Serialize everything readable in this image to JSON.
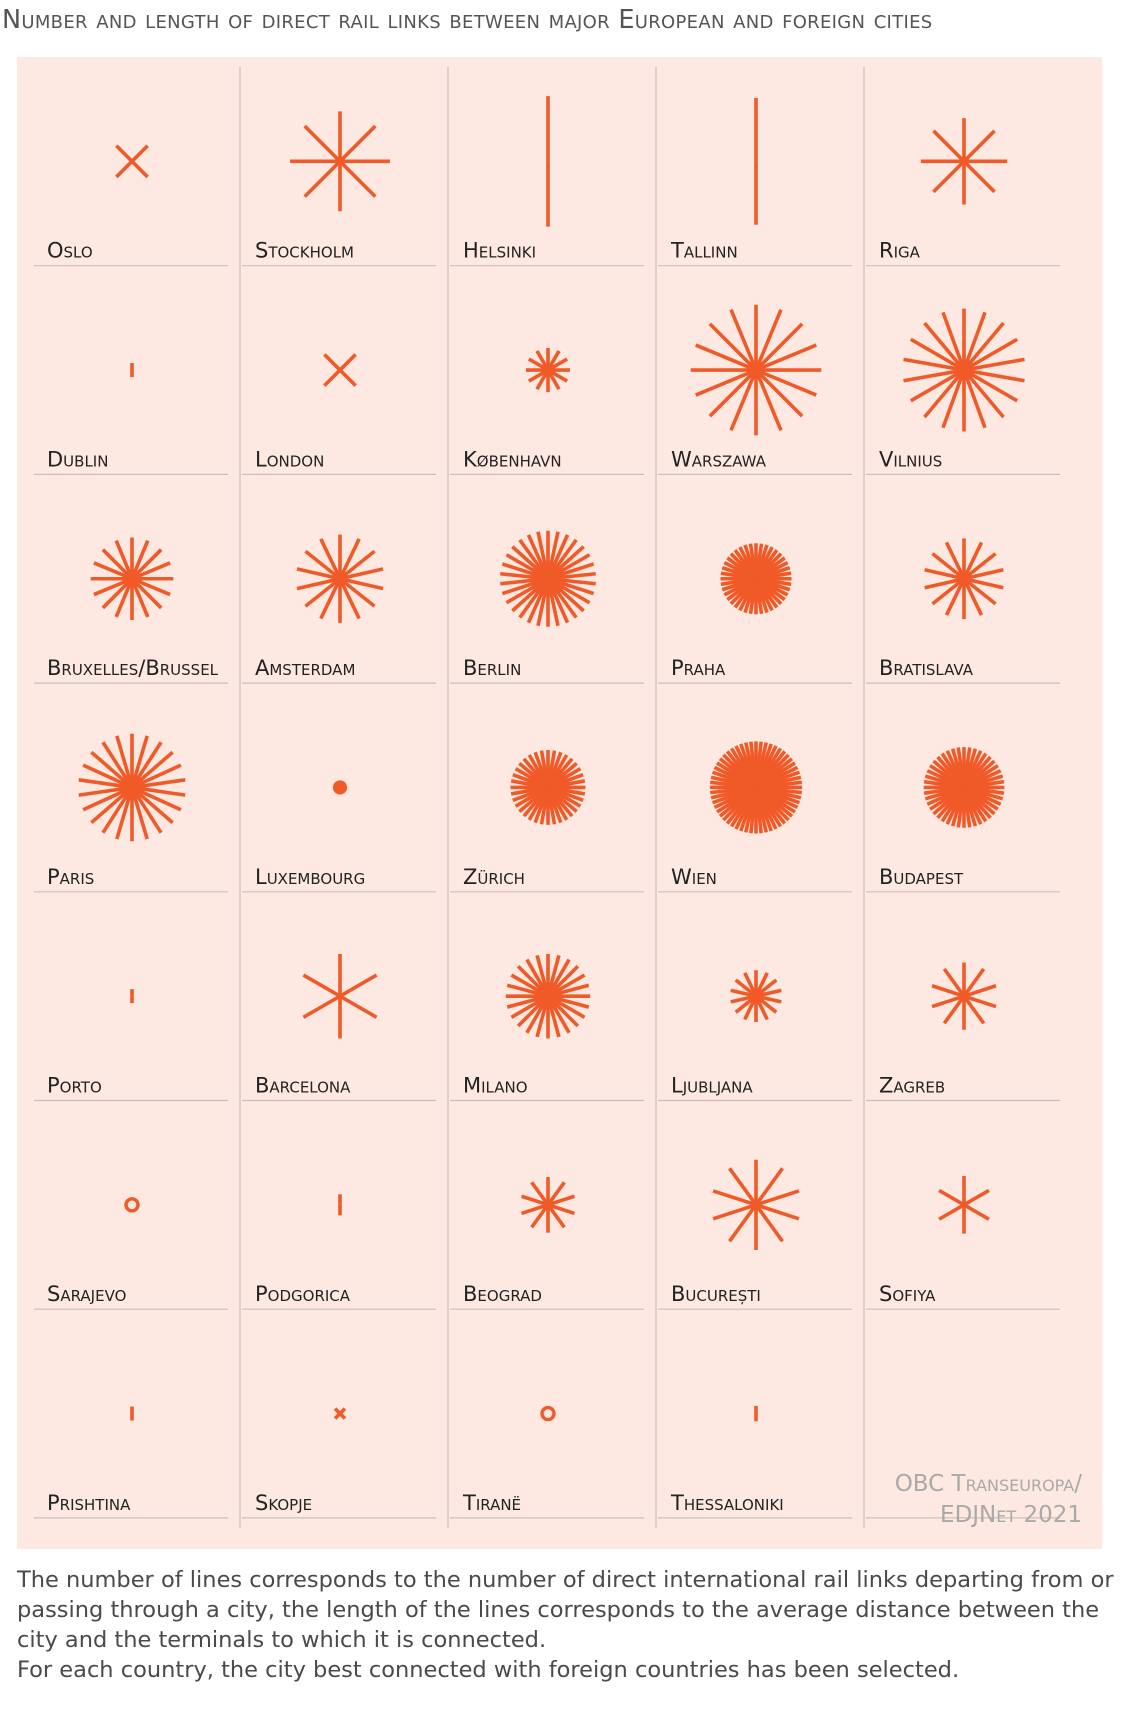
{
  "title": "Number and length of direct rail links between major European and foreign cities",
  "credit": {
    "line1": "OBC Transeuropa/",
    "line2": "EDJNet 2021"
  },
  "caption": {
    "line1": "The number of lines corresponds to the number of direct international rail links departing from or passing through a city, the length of the lines corresponds to the average distance between the city and the terminals to which it is connected.",
    "line2": "For each country, the city best connected with foreign countries has been selected."
  },
  "colors": {
    "star": "#f05a28",
    "panel": "#fde9e1",
    "divider": "#c8c0bd"
  },
  "chart_data": {
    "type": "radial-glyph-grid",
    "encoding": {
      "lines": "number of direct international rail links",
      "length": "relative average distance to connected terminals (0-1 scale)"
    },
    "columns": 5,
    "cities": [
      {
        "name": "Oslo",
        "lines": 4,
        "length": 0.23
      },
      {
        "name": "Stockholm",
        "lines": 8,
        "length": 0.52
      },
      {
        "name": "Helsinki",
        "lines": 2,
        "length": 0.68
      },
      {
        "name": "Tallinn",
        "lines": 2,
        "length": 0.66
      },
      {
        "name": "Riga",
        "lines": 8,
        "length": 0.45
      },
      {
        "name": "Dublin",
        "lines": 2,
        "length": 0.05
      },
      {
        "name": "London",
        "lines": 4,
        "length": 0.23
      },
      {
        "name": "København",
        "lines": 12,
        "length": 0.23
      },
      {
        "name": "Warszawa",
        "lines": 16,
        "length": 0.68
      },
      {
        "name": "Vilnius",
        "lines": 18,
        "length": 0.64
      },
      {
        "name": "Bruxelles/Brussel",
        "lines": 16,
        "length": 0.43
      },
      {
        "name": "Amsterdam",
        "lines": 14,
        "length": 0.46
      },
      {
        "name": "Berlin",
        "lines": 30,
        "length": 0.5
      },
      {
        "name": "Praha",
        "lines": 40,
        "length": 0.37
      },
      {
        "name": "Bratislava",
        "lines": 14,
        "length": 0.42
      },
      {
        "name": "Paris",
        "lines": 22,
        "length": 0.56
      },
      {
        "name": "Luxembourg",
        "lines": 14,
        "length": 0.05
      },
      {
        "name": "Zürich",
        "lines": 36,
        "length": 0.39
      },
      {
        "name": "Wien",
        "lines": 56,
        "length": 0.48
      },
      {
        "name": "Budapest",
        "lines": 44,
        "length": 0.42
      },
      {
        "name": "Porto",
        "lines": 2,
        "length": 0.04
      },
      {
        "name": "Barcelona",
        "lines": 6,
        "length": 0.44
      },
      {
        "name": "Milano",
        "lines": 24,
        "length": 0.44
      },
      {
        "name": "Ljubljana",
        "lines": 14,
        "length": 0.27
      },
      {
        "name": "Zagreb",
        "lines": 10,
        "length": 0.35
      },
      {
        "name": "Sarajevo",
        "lines": 0,
        "length": 0
      },
      {
        "name": "Podgorica",
        "lines": 2,
        "length": 0.11
      },
      {
        "name": "Beograd",
        "lines": 10,
        "length": 0.29
      },
      {
        "name": "București",
        "lines": 10,
        "length": 0.47
      },
      {
        "name": "Sofiya",
        "lines": 6,
        "length": 0.3
      },
      {
        "name": "Prishtina",
        "lines": 2,
        "length": 0.03
      },
      {
        "name": "Skopje",
        "lines": 4,
        "length": 0.06
      },
      {
        "name": "Tiranë",
        "lines": 0,
        "length": 0
      },
      {
        "name": "Thessaloniki",
        "lines": 2,
        "length": 0.08
      }
    ]
  }
}
